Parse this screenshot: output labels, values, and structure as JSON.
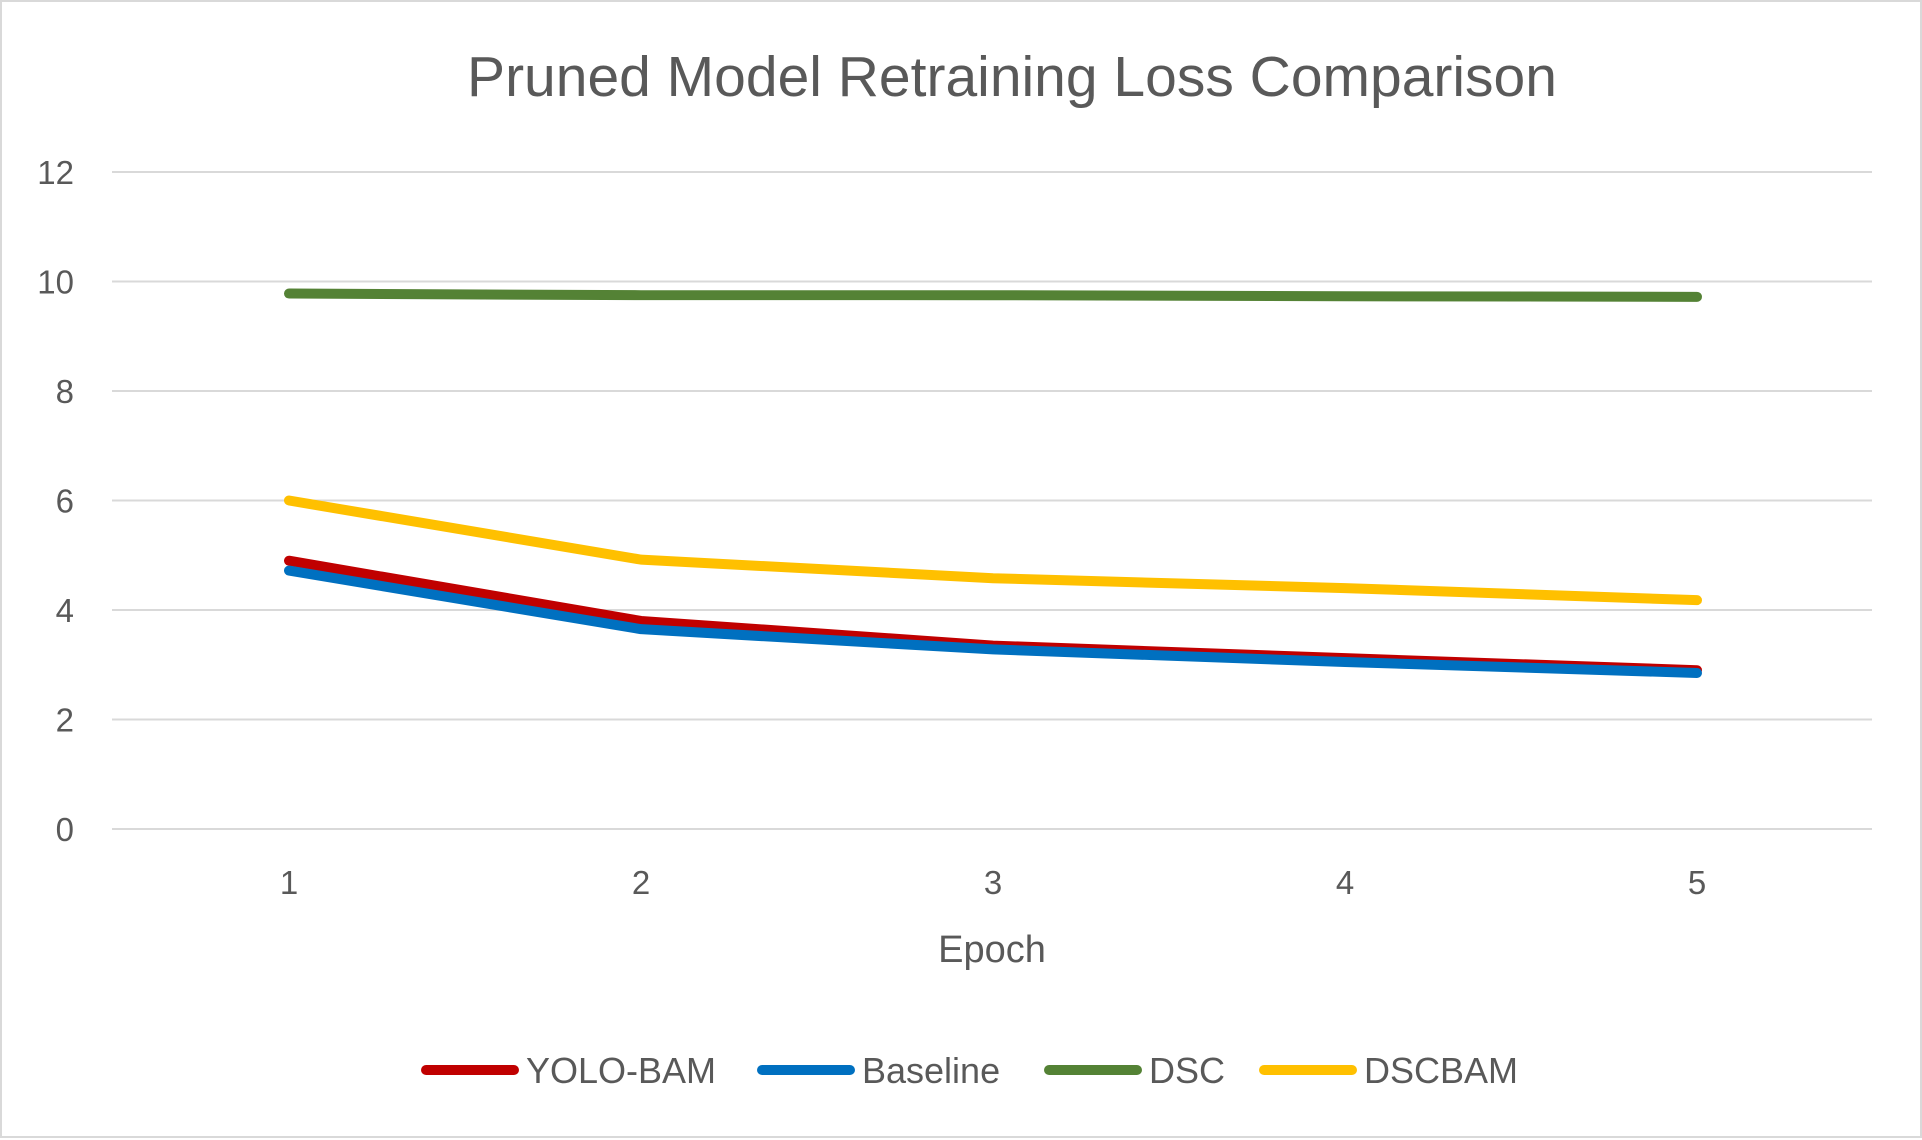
{
  "chart_data": {
    "type": "line",
    "title": "Pruned Model Retraining Loss Comparison",
    "xlabel": "Epoch",
    "ylabel": "",
    "categories": [
      "1",
      "2",
      "3",
      "4",
      "5"
    ],
    "ylim": [
      0,
      12
    ],
    "yticks": [
      0,
      2,
      4,
      6,
      8,
      10,
      12
    ],
    "grid": true,
    "legend_position": "bottom",
    "series": [
      {
        "name": "YOLO-BAM",
        "color": "#c00000",
        "values": [
          4.9,
          3.8,
          3.35,
          3.12,
          2.9
        ]
      },
      {
        "name": "Baseline",
        "color": "#0070c0",
        "values": [
          4.72,
          3.65,
          3.28,
          3.05,
          2.85
        ]
      },
      {
        "name": "DSC",
        "color": "#548235",
        "values": [
          9.78,
          9.75,
          9.75,
          9.73,
          9.72
        ]
      },
      {
        "name": "DSCBAM",
        "color": "#ffc000",
        "values": [
          6.0,
          4.92,
          4.58,
          4.4,
          4.18
        ]
      }
    ]
  }
}
